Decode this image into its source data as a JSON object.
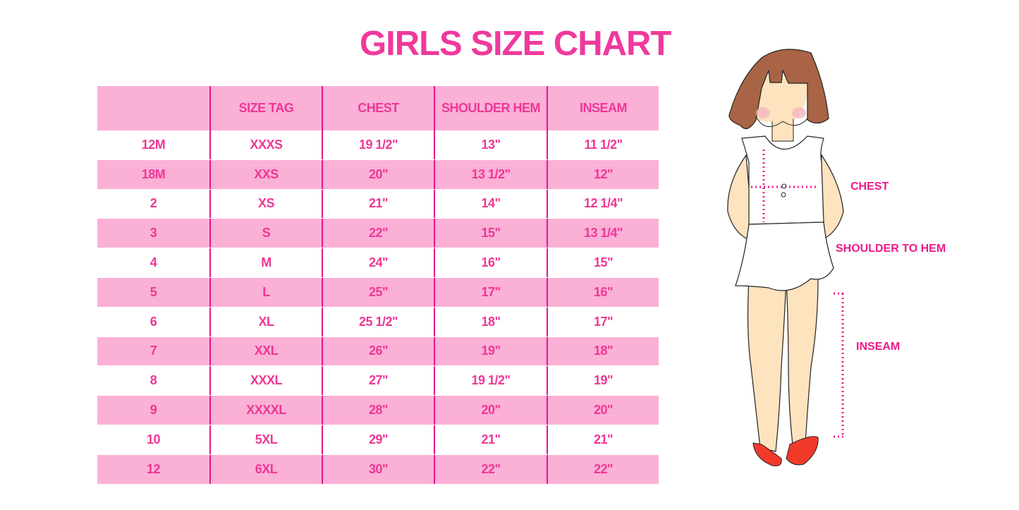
{
  "title": "GIRLS SIZE CHART",
  "table": {
    "headers": [
      "",
      "SIZE TAG",
      "CHEST",
      "SHOULDER HEM",
      "INSEAM"
    ],
    "rows": [
      [
        "12M",
        "XXXS",
        "19 1/2\"",
        "13\"",
        "11 1/2\""
      ],
      [
        "18M",
        "XXS",
        "20\"",
        "13 1/2\"",
        "12\""
      ],
      [
        "2",
        "XS",
        "21\"",
        "14\"",
        "12 1/4\""
      ],
      [
        "3",
        "S",
        "22\"",
        "15\"",
        "13 1/4\""
      ],
      [
        "4",
        "M",
        "24\"",
        "16\"",
        "15\""
      ],
      [
        "5",
        "L",
        "25\"",
        "17\"",
        "16\""
      ],
      [
        "6",
        "XL",
        "25 1/2\"",
        "18\"",
        "17\""
      ],
      [
        "7",
        "XXL",
        "26\"",
        "19\"",
        "18\""
      ],
      [
        "8",
        "XXXL",
        "27\"",
        "19 1/2\"",
        "19\""
      ],
      [
        "9",
        "XXXXL",
        "28\"",
        "20\"",
        "20\""
      ],
      [
        "10",
        "5XL",
        "29\"",
        "21\"",
        "21\""
      ],
      [
        "12",
        "6XL",
        "30\"",
        "22\"",
        "22\""
      ]
    ]
  },
  "figure": {
    "labels": {
      "chest": "CHEST",
      "shoulder": "SHOULDER TO HEM",
      "inseam": "INSEAM"
    }
  },
  "colors": {
    "accent": "#f0399c",
    "row_pink": "#fbb0d6",
    "divider": "#e5168c"
  }
}
